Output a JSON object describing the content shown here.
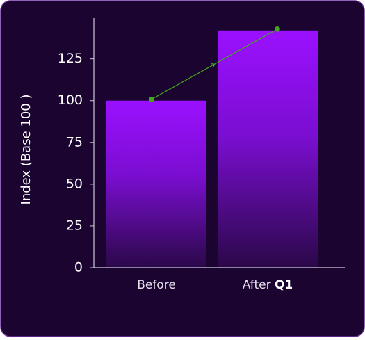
{
  "chart_data": {
    "type": "bar",
    "y_label": "Index (Base 100 )",
    "categories": [
      "Before",
      "After Q1"
    ],
    "values": [
      100,
      142
    ],
    "color": "#9b10ff",
    "connector_color": "#45a81c",
    "ylim": [
      0,
      149
    ],
    "yticks": [
      0,
      25,
      50,
      75,
      100,
      125
    ]
  }
}
